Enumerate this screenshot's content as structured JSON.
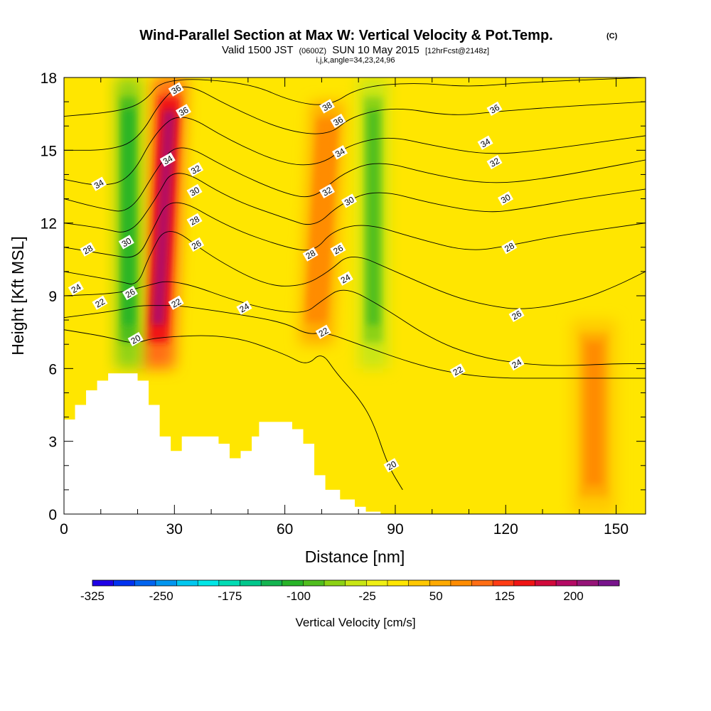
{
  "chart_data": {
    "type": "heatmap",
    "title": "Wind-Parallel Section at Max W: Vertical Velocity & Pot.Temp.",
    "title_mark": "(C)",
    "subtitle_parts": [
      "Valid 1500 JST",
      "(0600Z)",
      "SUN 10 May 2015",
      "[12hrFcst@2148z]"
    ],
    "subtitle2": "i,j,k,angle=34,23,24,96",
    "xlabel": "Distance [nm]",
    "ylabel": "Height [Kft MSL]",
    "xlim": [
      0,
      158
    ],
    "ylim": [
      0,
      18
    ],
    "xticks": [
      "0",
      "30",
      "60",
      "90",
      "120",
      "150"
    ],
    "yticks": [
      "0",
      "3",
      "6",
      "9",
      "12",
      "15",
      "18"
    ],
    "colorbar": {
      "label": "Vertical Velocity [cm/s]",
      "range": [
        -325,
        250
      ],
      "tick_labels": [
        "-325",
        "-250",
        "-175",
        "-100",
        "-25",
        "50",
        "125",
        "200"
      ],
      "colors": [
        "#1e00e6",
        "#0032f0",
        "#0064f0",
        "#0096f0",
        "#00c8f0",
        "#00e6e6",
        "#00dcb4",
        "#00c88c",
        "#14b450",
        "#28b428",
        "#50be1e",
        "#8cd214",
        "#c8e614",
        "#f0f014",
        "#ffe600",
        "#ffc800",
        "#ffaa00",
        "#ff8c00",
        "#ff6e14",
        "#ff3c14",
        "#f01414",
        "#d20a3c",
        "#b40a64",
        "#961478",
        "#78148c"
      ]
    },
    "vertical_velocity_features": [
      {
        "kind": "updraft",
        "x": [
          21,
          30
        ],
        "y": [
          6,
          18
        ],
        "max": 225
      },
      {
        "kind": "downdraft",
        "x": [
          14,
          21
        ],
        "y": [
          6,
          18
        ],
        "min": -110
      },
      {
        "kind": "updraft",
        "x": [
          64,
          73
        ],
        "y": [
          7,
          17
        ],
        "max": 100
      },
      {
        "kind": "downdraft",
        "x": [
          80,
          88
        ],
        "y": [
          6,
          18
        ],
        "min": -90
      },
      {
        "kind": "updraft",
        "x": [
          138,
          150
        ],
        "y": [
          0,
          8
        ],
        "max": 75
      }
    ],
    "terrain_kft": [
      {
        "x": 0,
        "y": 3.9
      },
      {
        "x": 3,
        "y": 4.5
      },
      {
        "x": 6,
        "y": 5.1
      },
      {
        "x": 9,
        "y": 5.5
      },
      {
        "x": 12,
        "y": 5.8
      },
      {
        "x": 17,
        "y": 5.8
      },
      {
        "x": 20,
        "y": 5.5
      },
      {
        "x": 23,
        "y": 4.5
      },
      {
        "x": 26,
        "y": 3.2
      },
      {
        "x": 29,
        "y": 2.6
      },
      {
        "x": 32,
        "y": 3.2
      },
      {
        "x": 38,
        "y": 3.2
      },
      {
        "x": 42,
        "y": 2.9
      },
      {
        "x": 45,
        "y": 2.3
      },
      {
        "x": 48,
        "y": 2.6
      },
      {
        "x": 51,
        "y": 3.2
      },
      {
        "x": 53,
        "y": 3.8
      },
      {
        "x": 60,
        "y": 3.8
      },
      {
        "x": 62,
        "y": 3.5
      },
      {
        "x": 65,
        "y": 2.9
      },
      {
        "x": 68,
        "y": 1.6
      },
      {
        "x": 71,
        "y": 1.0
      },
      {
        "x": 75,
        "y": 0.6
      },
      {
        "x": 79,
        "y": 0.3
      },
      {
        "x": 82,
        "y": 0.1
      },
      {
        "x": 86,
        "y": 0.1
      }
    ],
    "pot_temp_contours": [
      {
        "label": "20",
        "points": [
          [
            0,
            7.6
          ],
          [
            12,
            7.3
          ],
          [
            19,
            7.0
          ],
          [
            25,
            7.3
          ],
          [
            45,
            7.4
          ],
          [
            60,
            6.6
          ],
          [
            66,
            6.1
          ],
          [
            70,
            6.7
          ],
          [
            74,
            5.8
          ],
          [
            80,
            4.8
          ],
          [
            84,
            3.8
          ],
          [
            88,
            2.0
          ],
          [
            92,
            1.0
          ]
        ]
      },
      {
        "label": "22",
        "points": [
          [
            0,
            8.1
          ],
          [
            15,
            8.4
          ],
          [
            20,
            8.6
          ],
          [
            27,
            8.6
          ],
          [
            31,
            8.6
          ],
          [
            45,
            8.3
          ],
          [
            60,
            7.9
          ],
          [
            66,
            7.4
          ],
          [
            71,
            7.5
          ],
          [
            80,
            7.0
          ],
          [
            95,
            6.2
          ],
          [
            106,
            5.8
          ],
          [
            118,
            5.6
          ],
          [
            132,
            5.6
          ],
          [
            145,
            5.6
          ],
          [
            158,
            5.6
          ]
        ]
      },
      {
        "label": "24",
        "points": [
          [
            0,
            9.0
          ],
          [
            15,
            9.1
          ],
          [
            22,
            9.4
          ],
          [
            30,
            9.7
          ],
          [
            50,
            8.6
          ],
          [
            65,
            8.2
          ],
          [
            70,
            8.8
          ],
          [
            76,
            9.4
          ],
          [
            86,
            8.6
          ],
          [
            100,
            7.2
          ],
          [
            112,
            6.5
          ],
          [
            124,
            6.2
          ],
          [
            135,
            6.1
          ],
          [
            150,
            6.2
          ],
          [
            158,
            6.2
          ]
        ]
      },
      {
        "label": "26",
        "points": [
          [
            0,
            10.0
          ],
          [
            15,
            9.6
          ],
          [
            20,
            9.4
          ],
          [
            23,
            10.6
          ],
          [
            28,
            12.0
          ],
          [
            40,
            10.6
          ],
          [
            55,
            9.4
          ],
          [
            65,
            9.4
          ],
          [
            72,
            10.0
          ],
          [
            78,
            10.8
          ],
          [
            90,
            10.0
          ],
          [
            105,
            9.0
          ],
          [
            115,
            8.6
          ],
          [
            125,
            8.4
          ],
          [
            140,
            8.8
          ],
          [
            150,
            9.4
          ],
          [
            158,
            10.0
          ]
        ]
      },
      {
        "label": "28",
        "points": [
          [
            0,
            11.0
          ],
          [
            12,
            10.7
          ],
          [
            20,
            10.5
          ],
          [
            24,
            11.7
          ],
          [
            29,
            13.2
          ],
          [
            45,
            11.8
          ],
          [
            60,
            11.0
          ],
          [
            68,
            10.8
          ],
          [
            73,
            11.7
          ],
          [
            82,
            12.0
          ],
          [
            95,
            11.4
          ],
          [
            110,
            10.8
          ],
          [
            122,
            11.1
          ],
          [
            135,
            11.5
          ],
          [
            158,
            12.0
          ]
        ]
      },
      {
        "label": "30",
        "points": [
          [
            0,
            12.0
          ],
          [
            10,
            11.8
          ],
          [
            18,
            11.5
          ],
          [
            25,
            13.0
          ],
          [
            30,
            14.4
          ],
          [
            45,
            13.0
          ],
          [
            60,
            12.2
          ],
          [
            68,
            11.8
          ],
          [
            75,
            12.8
          ],
          [
            85,
            13.4
          ],
          [
            100,
            12.8
          ],
          [
            115,
            12.4
          ],
          [
            125,
            12.6
          ],
          [
            140,
            13.0
          ],
          [
            158,
            13.4
          ]
        ]
      },
      {
        "label": "32",
        "points": [
          [
            0,
            13.0
          ],
          [
            10,
            12.6
          ],
          [
            18,
            12.4
          ],
          [
            25,
            14.2
          ],
          [
            31,
            15.4
          ],
          [
            45,
            14.2
          ],
          [
            60,
            13.2
          ],
          [
            68,
            13.0
          ],
          [
            75,
            14.0
          ],
          [
            85,
            14.6
          ],
          [
            100,
            14.0
          ],
          [
            115,
            13.6
          ],
          [
            130,
            13.8
          ],
          [
            158,
            14.6
          ]
        ]
      },
      {
        "label": "34",
        "points": [
          [
            0,
            13.8
          ],
          [
            10,
            13.5
          ],
          [
            18,
            13.8
          ],
          [
            25,
            15.8
          ],
          [
            32,
            16.6
          ],
          [
            45,
            15.4
          ],
          [
            60,
            14.4
          ],
          [
            70,
            14.4
          ],
          [
            77,
            15.2
          ],
          [
            88,
            15.6
          ],
          [
            100,
            15.2
          ],
          [
            115,
            14.8
          ],
          [
            130,
            15.0
          ],
          [
            158,
            15.6
          ]
        ]
      },
      {
        "label": "36",
        "points": [
          [
            0,
            15.0
          ],
          [
            12,
            15.0
          ],
          [
            20,
            15.4
          ],
          [
            27,
            17.2
          ],
          [
            33,
            17.8
          ],
          [
            45,
            16.8
          ],
          [
            60,
            15.8
          ],
          [
            72,
            15.6
          ],
          [
            78,
            16.4
          ],
          [
            90,
            16.8
          ],
          [
            105,
            16.4
          ],
          [
            118,
            16.6
          ],
          [
            135,
            16.8
          ],
          [
            158,
            17.0
          ]
        ]
      },
      {
        "label": "38",
        "points": [
          [
            0,
            16.4
          ],
          [
            15,
            16.6
          ],
          [
            22,
            17.0
          ],
          [
            27,
            18.0
          ],
          [
            50,
            17.8
          ],
          [
            62,
            17.0
          ],
          [
            72,
            16.8
          ],
          [
            80,
            17.6
          ],
          [
            95,
            17.8
          ],
          [
            110,
            17.6
          ],
          [
            125,
            17.8
          ],
          [
            158,
            18.0
          ]
        ]
      }
    ],
    "contour_labels": [
      {
        "text": "36",
        "x": 30.5,
        "y": 17.5
      },
      {
        "text": "36",
        "x": 32.5,
        "y": 16.6
      },
      {
        "text": "34",
        "x": 28.2,
        "y": 14.6
      },
      {
        "text": "32",
        "x": 35.8,
        "y": 14.2
      },
      {
        "text": "30",
        "x": 35.5,
        "y": 13.3
      },
      {
        "text": "28",
        "x": 35.5,
        "y": 12.1
      },
      {
        "text": "26",
        "x": 36.0,
        "y": 11.1
      },
      {
        "text": "22",
        "x": 30.5,
        "y": 8.7
      },
      {
        "text": "24",
        "x": 49.0,
        "y": 8.5
      },
      {
        "text": "34",
        "x": 9.5,
        "y": 13.6
      },
      {
        "text": "28",
        "x": 6.5,
        "y": 10.9
      },
      {
        "text": "30",
        "x": 17.0,
        "y": 11.2
      },
      {
        "text": "24",
        "x": 3.3,
        "y": 9.3
      },
      {
        "text": "22",
        "x": 9.8,
        "y": 8.7
      },
      {
        "text": "26",
        "x": 18.0,
        "y": 9.1
      },
      {
        "text": "20",
        "x": 19.5,
        "y": 7.2
      },
      {
        "text": "38",
        "x": 71.5,
        "y": 16.8
      },
      {
        "text": "36",
        "x": 74.5,
        "y": 16.2
      },
      {
        "text": "34",
        "x": 75.0,
        "y": 14.9
      },
      {
        "text": "32",
        "x": 71.5,
        "y": 13.3
      },
      {
        "text": "30",
        "x": 77.5,
        "y": 12.9
      },
      {
        "text": "28",
        "x": 67.0,
        "y": 10.7
      },
      {
        "text": "26",
        "x": 74.5,
        "y": 10.9
      },
      {
        "text": "24",
        "x": 76.5,
        "y": 9.7
      },
      {
        "text": "22",
        "x": 70.5,
        "y": 7.5
      },
      {
        "text": "22",
        "x": 107.0,
        "y": 5.9
      },
      {
        "text": "24",
        "x": 123.0,
        "y": 6.2
      },
      {
        "text": "26",
        "x": 123.0,
        "y": 8.2
      },
      {
        "text": "28",
        "x": 121.0,
        "y": 11.0
      },
      {
        "text": "30",
        "x": 120.0,
        "y": 13.0
      },
      {
        "text": "32",
        "x": 117.0,
        "y": 14.5
      },
      {
        "text": "34",
        "x": 114.5,
        "y": 15.3
      },
      {
        "text": "36",
        "x": 117.0,
        "y": 16.7
      },
      {
        "text": "20",
        "x": 89.0,
        "y": 2.0
      }
    ]
  }
}
